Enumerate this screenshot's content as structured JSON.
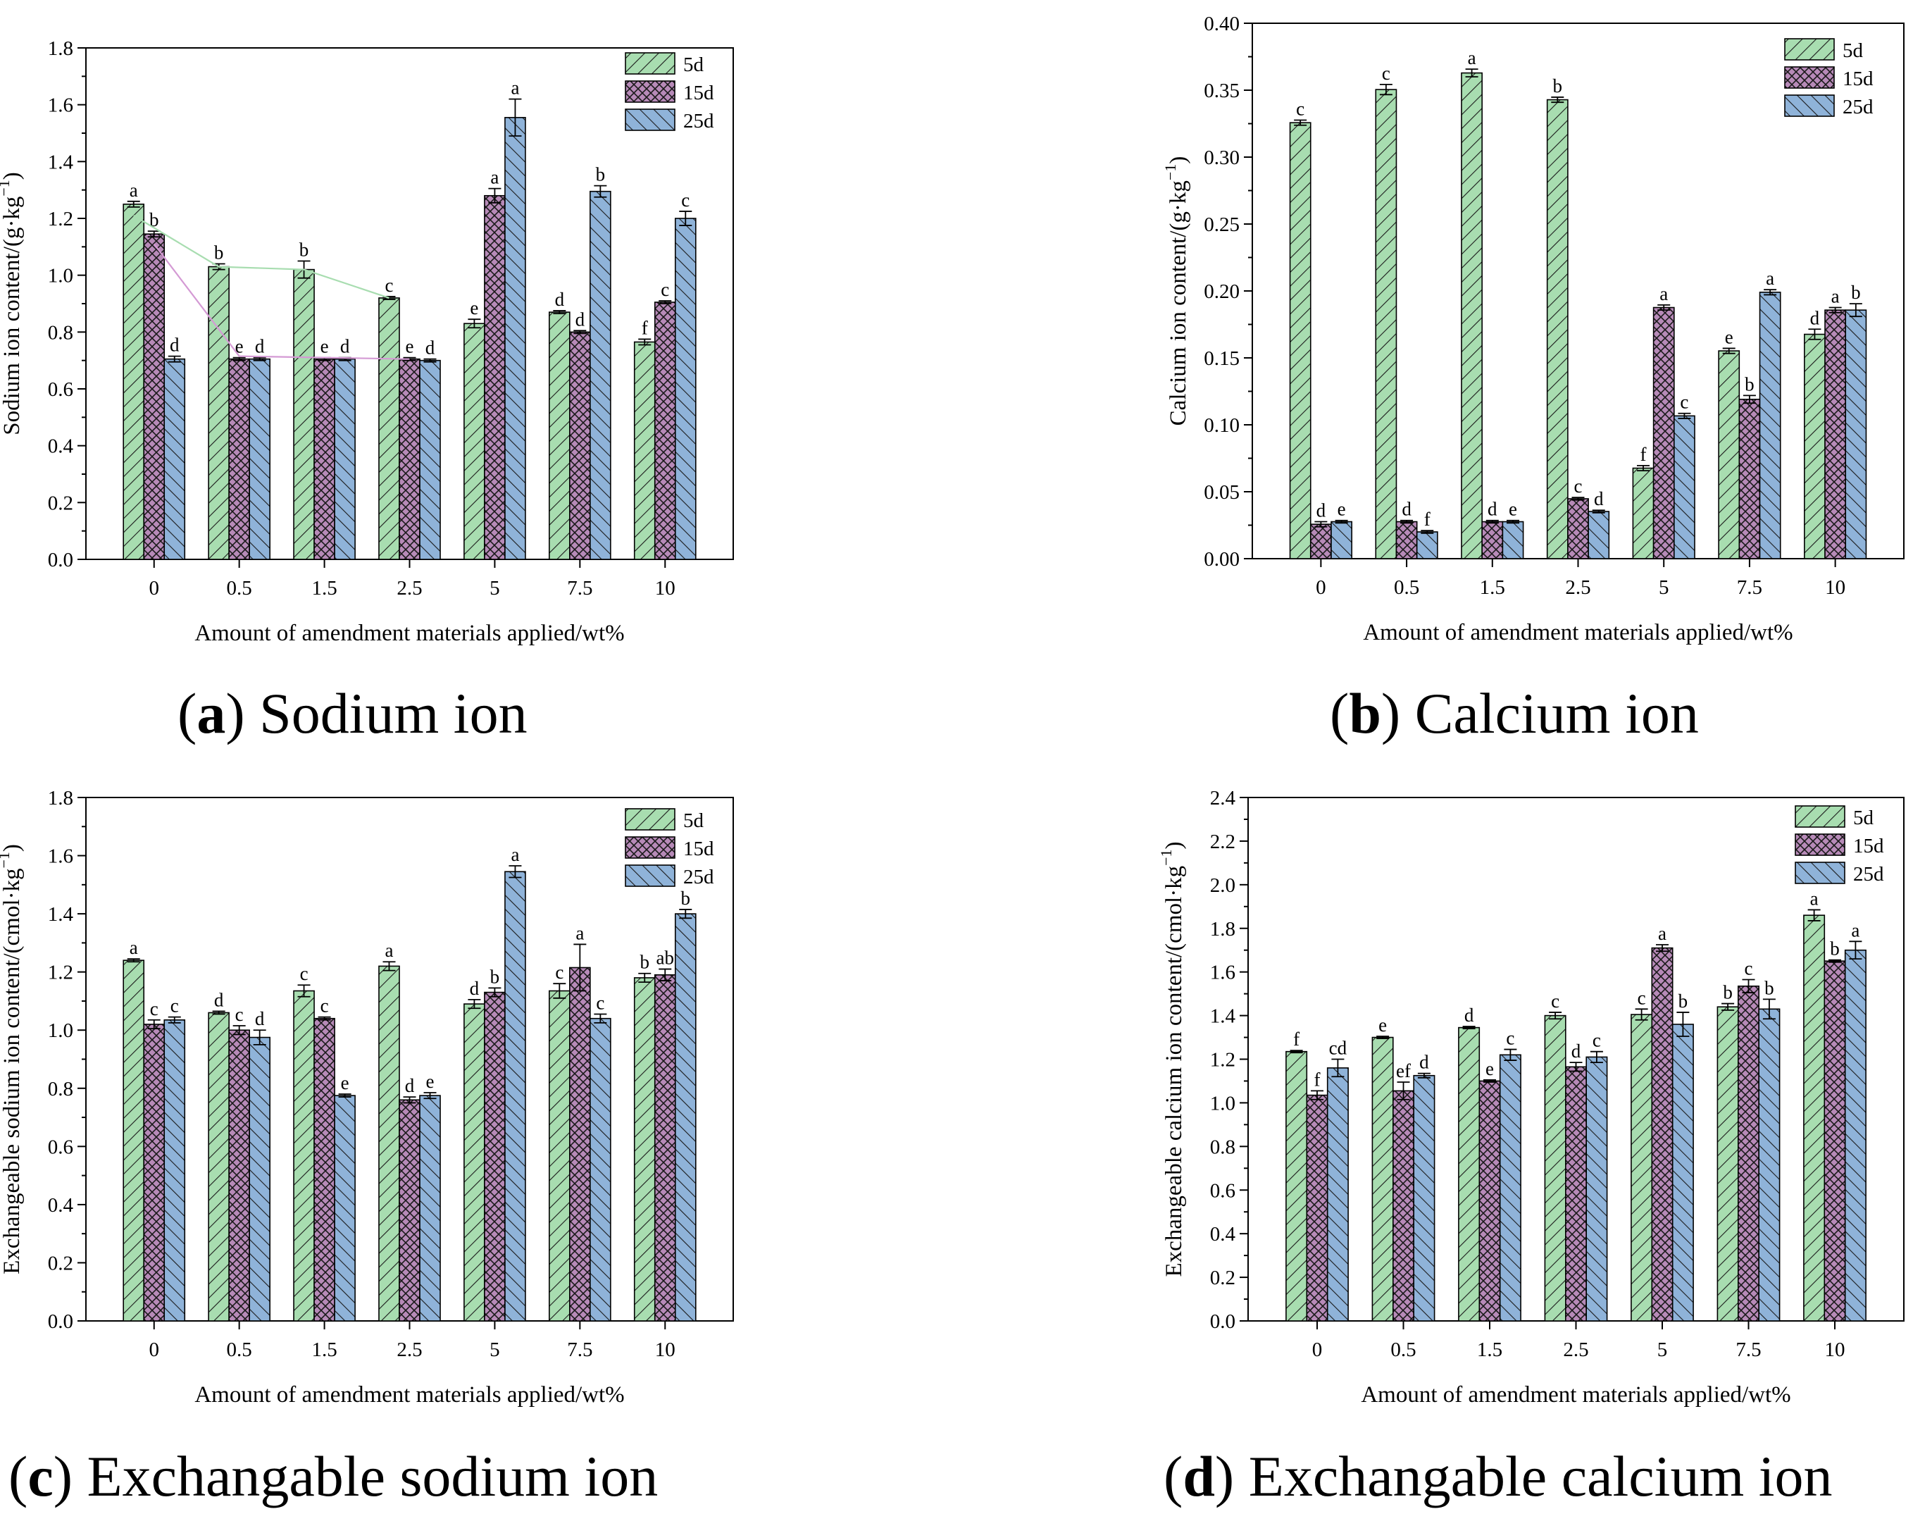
{
  "captions": [
    {
      "letter": "a",
      "text": "Sodium ion"
    },
    {
      "letter": "b",
      "text": "Calcium ion"
    },
    {
      "letter": "c",
      "text": "Exchangable sodium ion"
    },
    {
      "letter": "d",
      "text": "Exchangable calcium ion"
    }
  ],
  "colors": {
    "5d": "#a8ddb0",
    "15d": "#b78ab8",
    "25d": "#8fb3d9",
    "line_5d": "#a8ddb0",
    "line_15d": "#d49ad4"
  },
  "chart_data": [
    {
      "id": "a",
      "type": "bar",
      "ylabel": "Sodium ion content/(g·kg",
      "ylabel_sup": "−1",
      "ylabel_tail": ")",
      "xlabel": "Amount of amendment materials applied/wt%",
      "categories": [
        "0",
        "0.5",
        "1.5",
        "2.5",
        "5",
        "7.5",
        "10"
      ],
      "ylim": [
        0,
        1.8
      ],
      "yticks": [
        "0.0",
        "0.2",
        "0.4",
        "0.6",
        "0.8",
        "1.0",
        "1.2",
        "1.4",
        "1.6",
        "1.8"
      ],
      "legend": [
        "5d",
        "15d",
        "25d"
      ],
      "series": [
        {
          "name": "5d",
          "values": [
            1.25,
            1.03,
            1.02,
            0.92,
            0.83,
            0.87,
            0.765
          ],
          "errors": [
            0.01,
            0.01,
            0.03,
            0.005,
            0.015,
            0.005,
            0.01
          ],
          "letters": [
            "a",
            "b",
            "b",
            "c",
            "e",
            "d",
            "f"
          ]
        },
        {
          "name": "15d",
          "values": [
            1.145,
            0.705,
            0.705,
            0.705,
            1.28,
            0.8,
            0.905
          ],
          "errors": [
            0.01,
            0.005,
            0.005,
            0.005,
            0.025,
            0.005,
            0.005
          ],
          "letters": [
            "b",
            "e",
            "e",
            "e",
            "a",
            "d",
            "c"
          ]
        },
        {
          "name": "25d",
          "values": [
            0.705,
            0.705,
            0.705,
            0.7,
            1.555,
            1.295,
            1.2
          ],
          "errors": [
            0.01,
            0.005,
            0.005,
            0.005,
            0.065,
            0.02,
            0.025
          ],
          "letters": [
            "d",
            "d",
            "d",
            "d",
            "a",
            "b",
            "c"
          ]
        }
      ],
      "trend_lines": [
        {
          "series": "5d",
          "x": [
            0,
            1,
            2,
            3
          ],
          "y": [
            1.21,
            1.03,
            1.02,
            0.92
          ]
        },
        {
          "series": "15d",
          "x": [
            0,
            1,
            2,
            3
          ],
          "y": [
            1.11,
            0.715,
            0.71,
            0.705
          ]
        }
      ]
    },
    {
      "id": "b",
      "type": "bar",
      "ylabel": "Calcium ion content/(g·kg",
      "ylabel_sup": "−1",
      "ylabel_tail": ")",
      "xlabel": "Amount of amendment materials applied/wt%",
      "categories": [
        "0",
        "0.5",
        "1.5",
        "2.5",
        "5",
        "7.5",
        "10"
      ],
      "ylim": [
        0,
        0.42
      ],
      "yticks": [
        "0.00",
        "0.05",
        "0.10",
        "0.15",
        "0.20",
        "0.25",
        "0.30",
        "0.35",
        "0.40"
      ],
      "legend": [
        "5d",
        "15d",
        "25d"
      ],
      "series": [
        {
          "name": "5d",
          "values": [
            0.342,
            0.368,
            0.381,
            0.36,
            0.071,
            0.163,
            0.176
          ],
          "errors": [
            0.002,
            0.004,
            0.003,
            0.002,
            0.002,
            0.002,
            0.004
          ],
          "letters": [
            "c",
            "c",
            "a",
            "b",
            "f",
            "e",
            "d"
          ]
        },
        {
          "name": "15d",
          "values": [
            0.027,
            0.029,
            0.029,
            0.047,
            0.197,
            0.125,
            0.195
          ],
          "errors": [
            0.002,
            0.001,
            0.001,
            0.001,
            0.002,
            0.003,
            0.002
          ],
          "letters": [
            "d",
            "d",
            "d",
            "c",
            "a",
            "b",
            "a"
          ]
        },
        {
          "name": "25d",
          "values": [
            0.029,
            0.021,
            0.029,
            0.037,
            0.112,
            0.209,
            0.195
          ],
          "errors": [
            0.001,
            0.001,
            0.001,
            0.001,
            0.002,
            0.002,
            0.005
          ],
          "letters": [
            "e",
            "f",
            "e",
            "d",
            "c",
            "a",
            "b"
          ]
        }
      ]
    },
    {
      "id": "c",
      "type": "bar",
      "ylabel": "Exchangeable sodium ion content/(cmol·kg",
      "ylabel_sup": "−1",
      "ylabel_tail": ")",
      "xlabel": "Amount of amendment materials applied/wt%",
      "categories": [
        "0",
        "0.5",
        "1.5",
        "2.5",
        "5",
        "7.5",
        "10"
      ],
      "ylim": [
        0,
        1.8
      ],
      "yticks": [
        "0.0",
        "0.2",
        "0.4",
        "0.6",
        "0.8",
        "1.0",
        "1.2",
        "1.4",
        "1.6",
        "1.8"
      ],
      "legend": [
        "5d",
        "15d",
        "25d"
      ],
      "series": [
        {
          "name": "5d",
          "values": [
            1.24,
            1.06,
            1.135,
            1.22,
            1.09,
            1.135,
            1.18
          ],
          "errors": [
            0.005,
            0.005,
            0.02,
            0.015,
            0.015,
            0.025,
            0.015
          ],
          "letters": [
            "a",
            "d",
            "c",
            "a",
            "d",
            "c",
            "b"
          ]
        },
        {
          "name": "15d",
          "values": [
            1.02,
            1.0,
            1.04,
            0.76,
            1.13,
            1.215,
            1.19
          ],
          "errors": [
            0.015,
            0.015,
            0.005,
            0.01,
            0.015,
            0.08,
            0.02
          ],
          "letters": [
            "c",
            "c",
            "c",
            "d",
            "b",
            "a",
            "ab"
          ]
        },
        {
          "name": "25d",
          "values": [
            1.035,
            0.975,
            0.775,
            0.775,
            1.545,
            1.04,
            1.4
          ],
          "errors": [
            0.01,
            0.025,
            0.005,
            0.01,
            0.02,
            0.015,
            0.015
          ],
          "letters": [
            "c",
            "d",
            "e",
            "e",
            "a",
            "c",
            "b"
          ]
        }
      ]
    },
    {
      "id": "d",
      "type": "bar",
      "ylabel": "Exchangeable calcium ion content/(cmol·kg",
      "ylabel_sup": "−1",
      "ylabel_tail": ")",
      "xlabel": "Amount of amendment materials applied/wt%",
      "categories": [
        "0",
        "0.5",
        "1.5",
        "2.5",
        "5",
        "7.5",
        "10"
      ],
      "ylim": [
        0,
        2.4
      ],
      "yticks": [
        "0.0",
        "0.2",
        "0.4",
        "0.6",
        "0.8",
        "1.0",
        "1.2",
        "1.4",
        "1.6",
        "1.8",
        "2.0",
        "2.2",
        "2.4"
      ],
      "legend": [
        "5d",
        "15d",
        "25d"
      ],
      "series": [
        {
          "name": "5d",
          "values": [
            1.235,
            1.3,
            1.345,
            1.4,
            1.405,
            1.44,
            1.86
          ],
          "errors": [
            0.005,
            0.005,
            0.005,
            0.015,
            0.025,
            0.015,
            0.025
          ],
          "letters": [
            "f",
            "e",
            "d",
            "c",
            "c",
            "b",
            "a"
          ]
        },
        {
          "name": "15d",
          "values": [
            1.035,
            1.055,
            1.1,
            1.165,
            1.71,
            1.535,
            1.65
          ],
          "errors": [
            0.02,
            0.04,
            0.005,
            0.02,
            0.015,
            0.03,
            0.005
          ],
          "letters": [
            "f",
            "ef",
            "e",
            "d",
            "a",
            "c",
            "b"
          ]
        },
        {
          "name": "25d",
          "values": [
            1.16,
            1.125,
            1.22,
            1.21,
            1.36,
            1.43,
            1.7
          ],
          "errors": [
            0.04,
            0.01,
            0.025,
            0.025,
            0.055,
            0.045,
            0.04
          ],
          "letters": [
            "cd",
            "d",
            "c",
            "c",
            "b",
            "b",
            "a"
          ]
        }
      ]
    }
  ]
}
